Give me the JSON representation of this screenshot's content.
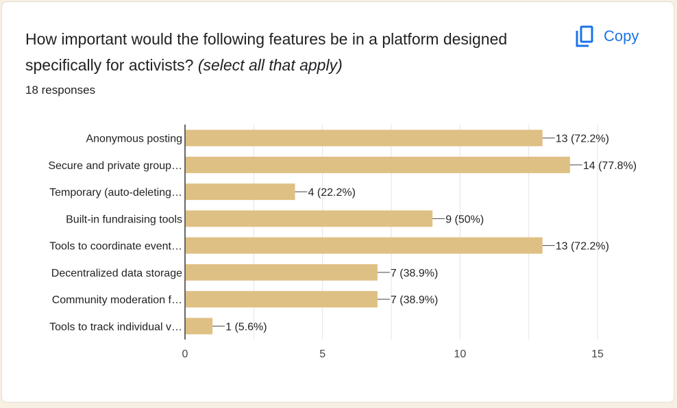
{
  "header": {
    "title": "How important would the following features be in a platform designed specifically for activists?",
    "title_suffix": "(select all that apply)",
    "responses": "18 responses",
    "copy_label": "Copy",
    "copy_icon": "copy-icon"
  },
  "colors": {
    "bar": "#dfc084",
    "link": "#1a73e8",
    "grid": "#e3e3e3",
    "axis": "#333333"
  },
  "chart_data": {
    "type": "bar",
    "orientation": "horizontal",
    "categories": [
      "Anonymous posting",
      "Secure and private group…",
      "Temporary (auto-deleting…",
      "Built-in fundraising tools",
      "Tools to coordinate event…",
      "Decentralized data storage",
      "Community moderation f…",
      "Tools to track individual v…"
    ],
    "values": [
      13,
      14,
      4,
      9,
      13,
      7,
      7,
      1
    ],
    "value_labels": [
      "13 (72.2%)",
      "14 (77.8%)",
      "4 (22.2%)",
      "9 (50%)",
      "13 (72.2%)",
      "7 (38.9%)",
      "7 (38.9%)",
      "1 (5.6%)"
    ],
    "x_ticks": [
      0,
      5,
      10,
      15
    ],
    "xlim": [
      0,
      15
    ],
    "grid": true,
    "title": "",
    "xlabel": "",
    "ylabel": ""
  }
}
